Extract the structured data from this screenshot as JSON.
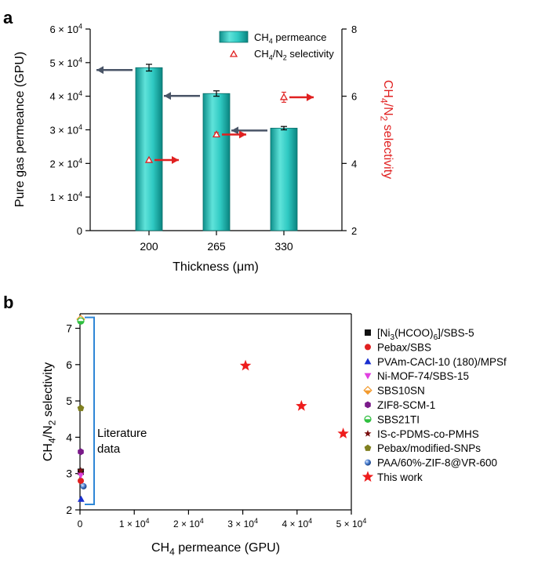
{
  "chart_data": [
    {
      "panel": "a",
      "type": "bar",
      "categories": [
        "200",
        "265",
        "330"
      ],
      "xlabel": "Thickness (μm)",
      "ylabel": "Pure gas permeance (GPU)",
      "ylim": [
        0,
        60000
      ],
      "yticks": [
        "0",
        "1 × 10^4",
        "2 × 10^4",
        "3 × 10^4",
        "4 × 10^4",
        "5 × 10^4",
        "6 × 10^4"
      ],
      "y2label": "CH4/N2 selectivity",
      "y2lim": [
        2,
        8
      ],
      "y2ticks": [
        "2",
        "4",
        "6",
        "8"
      ],
      "legend_placement": "top-right",
      "series": [
        {
          "name": "CH4 permeance",
          "kind": "bar",
          "axis": "left",
          "color": "#1bb5b0",
          "values": [
            48500,
            40800,
            30500
          ],
          "errors": [
            1000,
            800,
            500
          ]
        },
        {
          "name": "CH4/N2 selectivity",
          "kind": "scatter",
          "axis": "right",
          "color": "#e02020",
          "values": [
            4.1,
            4.86,
            5.97
          ],
          "errors": [
            0,
            0.06,
            0.15
          ]
        }
      ]
    },
    {
      "panel": "b",
      "type": "scatter",
      "xlabel": "CH4 permeance (GPU)",
      "ylabel": "CH4/N2 selectivity",
      "xlim": [
        0,
        50000
      ],
      "ylim": [
        2,
        7.4
      ],
      "xticks": [
        "0",
        "1 × 10^4",
        "2 × 10^4",
        "3 × 10^4",
        "4 × 10^4",
        "5 × 10^4"
      ],
      "yticks": [
        "2",
        "3",
        "4",
        "5",
        "6",
        "7"
      ],
      "legend_placement": "right",
      "annotation": "Literature data",
      "series": [
        {
          "name": "[Ni3(HCOO)6]/SBS-5",
          "marker": "square",
          "color": "#111111",
          "points": [
            [
              60,
              3.05
            ]
          ]
        },
        {
          "name": "Pebax/SBS",
          "marker": "circle",
          "color": "#e02020",
          "points": [
            [
              60,
              2.8
            ]
          ]
        },
        {
          "name": "PVAm-CACl-10 (180)/MPSf",
          "marker": "triangle-up",
          "color": "#1a2fd0",
          "points": [
            [
              200,
              2.3
            ]
          ]
        },
        {
          "name": "Ni-MOF-74/SBS-15",
          "marker": "triangle-down",
          "color": "#e040e0",
          "points": [
            [
              60,
              2.95
            ]
          ]
        },
        {
          "name": "SBS10SN",
          "marker": "diamond",
          "color": "#f29a2e",
          "points": [
            [
              40,
              7.25
            ]
          ]
        },
        {
          "name": "ZIF8-SCM-1",
          "marker": "hexagon",
          "color": "#7a1a8a",
          "points": [
            [
              50,
              3.6
            ]
          ]
        },
        {
          "name": "SBS21TI",
          "marker": "half-circle",
          "color": "#2fbf3f",
          "points": [
            [
              30,
              7.2
            ]
          ]
        },
        {
          "name": "IS-c-PDMS-co-PMHS",
          "marker": "star-small",
          "color": "#7a1010",
          "points": [
            [
              80,
              3.08
            ]
          ]
        },
        {
          "name": "Pebax/modified-SNPs",
          "marker": "pentagon",
          "color": "#808020",
          "points": [
            [
              80,
              4.8
            ]
          ]
        },
        {
          "name": "PAA/60%-ZIF-8@VR-600",
          "marker": "sphere",
          "color": "#2a5fb0",
          "points": [
            [
              650,
              2.65
            ]
          ]
        },
        {
          "name": "This work",
          "marker": "star",
          "color": "#ee1c1c",
          "points": [
            [
              30500,
              5.97
            ],
            [
              40800,
              4.86
            ],
            [
              48500,
              4.1
            ]
          ]
        }
      ]
    }
  ],
  "panel_a_label": "a",
  "panel_b_label": "b"
}
